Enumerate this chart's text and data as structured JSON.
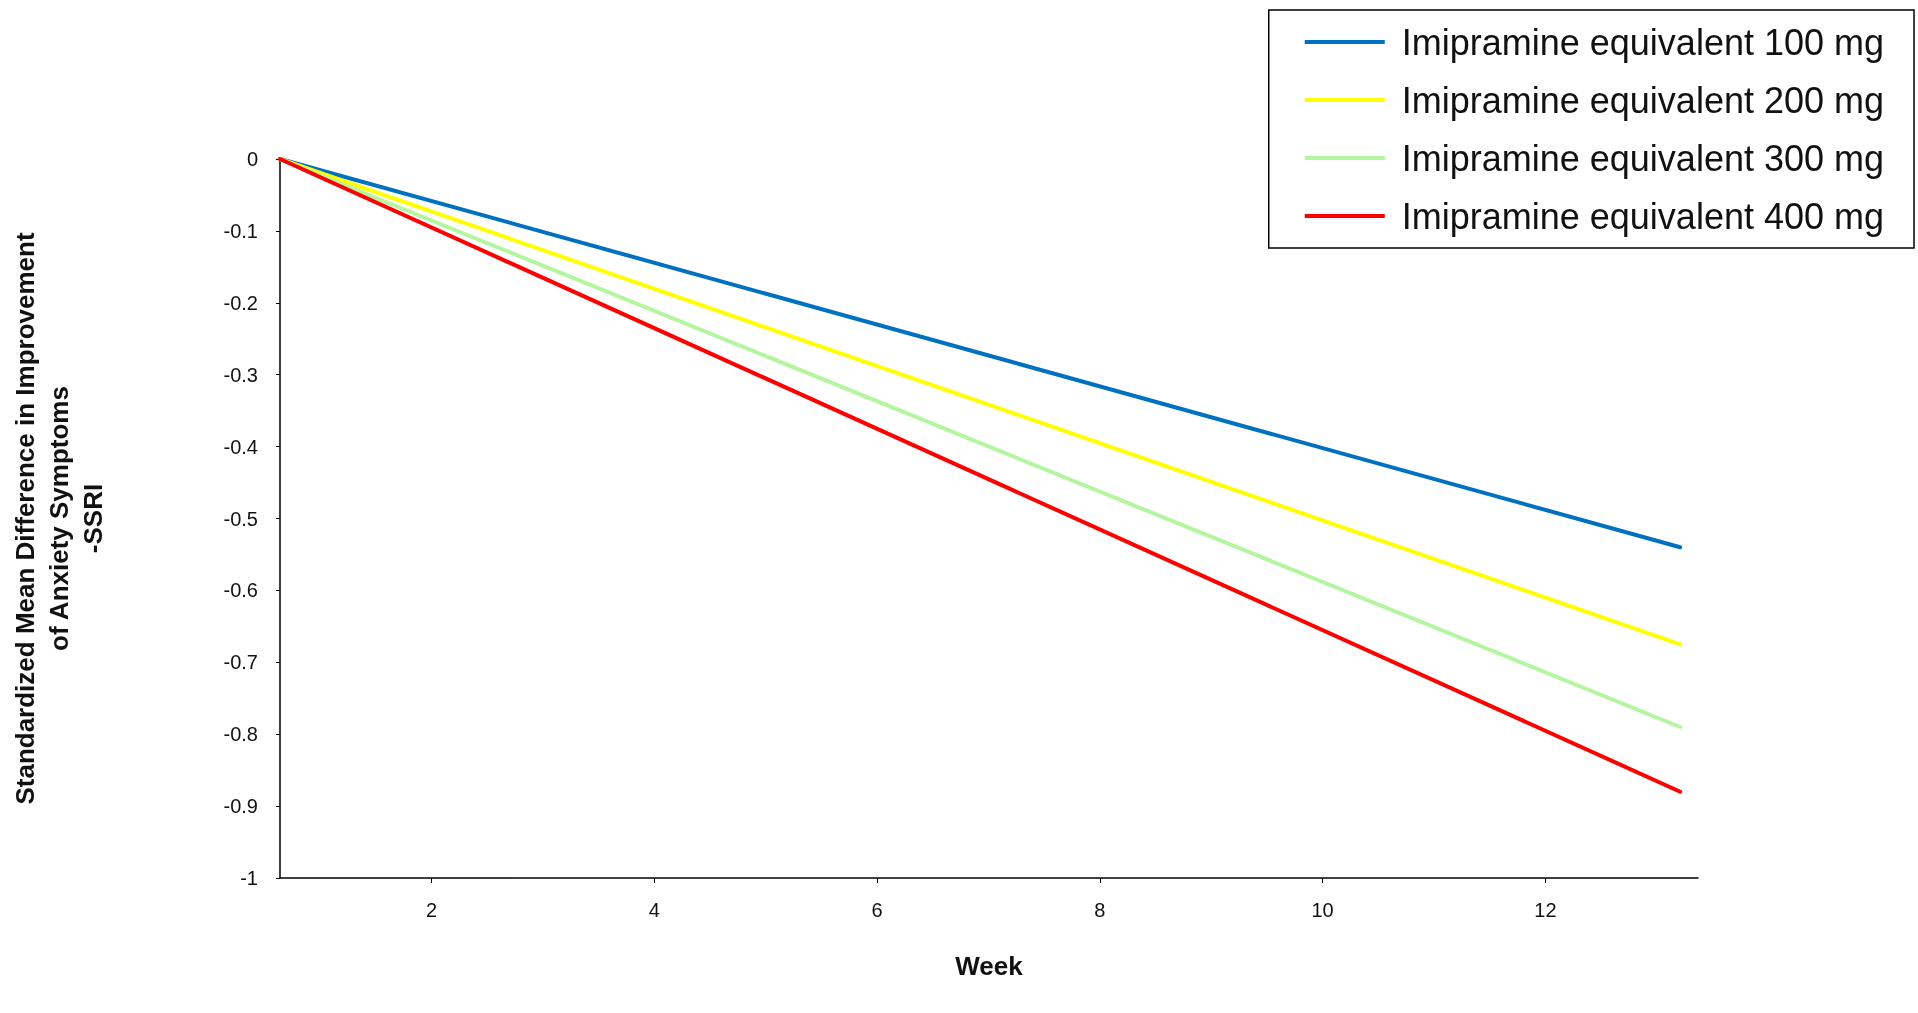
{
  "chart_data": {
    "type": "line",
    "xlabel": "Week",
    "ylabel": "Standardized Mean Difference in Improvement\nof Anxiety Symptoms\n-SSRI",
    "x": [
      0.64,
      13.21
    ],
    "series": [
      {
        "name": "Imipramine equivalent 100 mg",
        "color": "#0070c0",
        "values": [
          0,
          -0.54
        ]
      },
      {
        "name": "Imipramine equivalent 200 mg",
        "color": "#ffff00",
        "values": [
          0,
          -0.675
        ]
      },
      {
        "name": "Imipramine equivalent 300 mg",
        "color": "#b4f5a0",
        "values": [
          0,
          -0.79
        ]
      },
      {
        "name": "Imipramine equivalent 400 mg",
        "color": "#ff0000",
        "values": [
          0,
          -0.88
        ]
      }
    ],
    "xlim": [
      0.64,
      13.37
    ],
    "xticks": [
      2,
      4,
      6,
      8,
      10,
      12
    ],
    "ylim": [
      -1,
      0
    ],
    "yticks": [
      0,
      -0.1,
      -0.2,
      -0.3,
      -0.4,
      -0.5,
      -0.6,
      -0.7,
      -0.8,
      -0.9,
      -1
    ],
    "grid": false,
    "legend": "top right",
    "marker": "none",
    "line_style": "solid"
  }
}
